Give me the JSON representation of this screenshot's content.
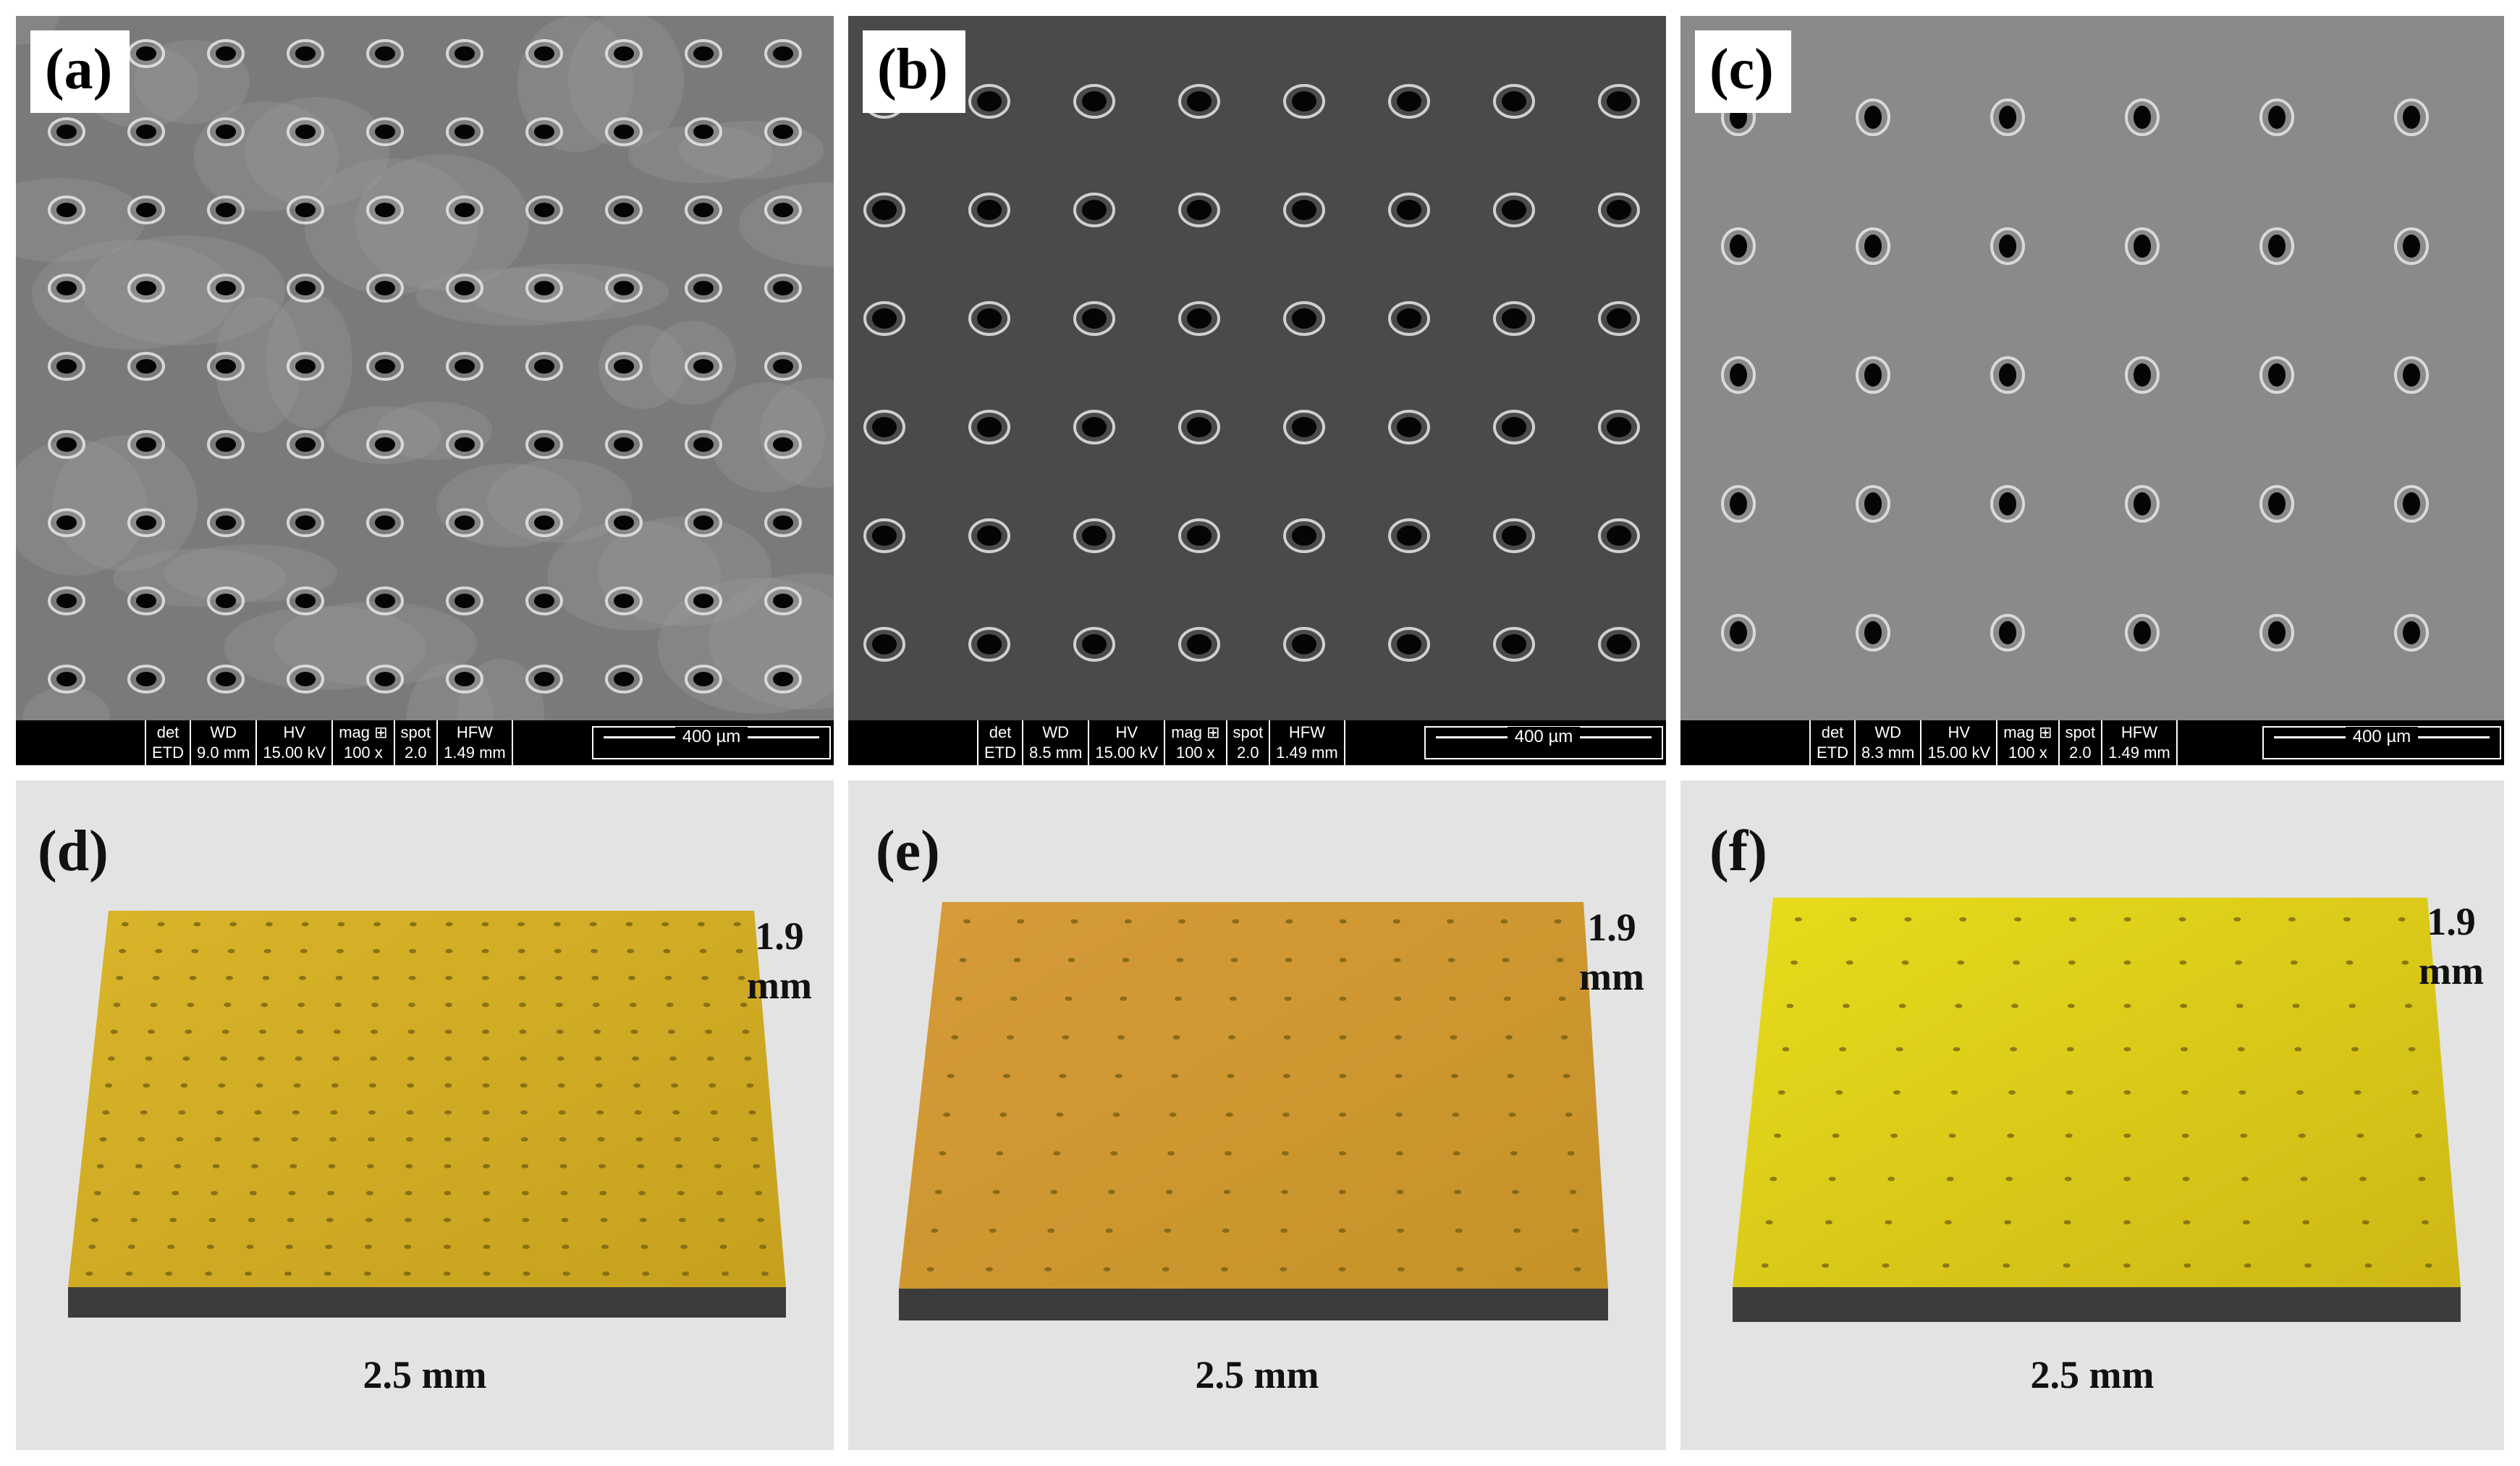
{
  "panels_sem": [
    {
      "label": "(a)",
      "det": "ETD",
      "wd": "9.0 mm",
      "hv": "15.00 kV",
      "mag": "100 x",
      "spot": "2.0",
      "hfw": "1.49 mm",
      "scale": "400 µm"
    },
    {
      "label": "(b)",
      "det": "ETD",
      "wd": "8.5 mm",
      "hv": "15.00 kV",
      "mag": "100 x",
      "spot": "2.0",
      "hfw": "1.49 mm",
      "scale": "400 µm"
    },
    {
      "label": "(c)",
      "det": "ETD",
      "wd": "8.3 mm",
      "hv": "15.00 kV",
      "mag": "100 x",
      "spot": "2.0",
      "hfw": "1.49 mm",
      "scale": "400 µm"
    }
  ],
  "info_headers": {
    "det": "det",
    "wd": "WD",
    "hv": "HV",
    "mag": "mag ⊞",
    "spot": "spot",
    "hfw": "HFW"
  },
  "panels_profile": [
    {
      "label": "(d)",
      "height_value": "1.9",
      "height_unit": "mm",
      "width": "2.5 mm"
    },
    {
      "label": "(e)",
      "height_value": "1.9",
      "height_unit": "mm",
      "width": "2.5 mm"
    },
    {
      "label": "(f)",
      "height_value": "1.9",
      "height_unit": "mm",
      "width": "2.5 mm"
    }
  ],
  "colors": {
    "sem_a": "#7a7a7a",
    "sem_b": "#4a4a4a",
    "sem_c": "#8a8a8a",
    "surface_d": "#d9b52a",
    "surface_e": "#d79a3a",
    "surface_f": "#e8dc1c",
    "base": "#3c3c3c",
    "profile_bg": "#e3e3e3"
  }
}
